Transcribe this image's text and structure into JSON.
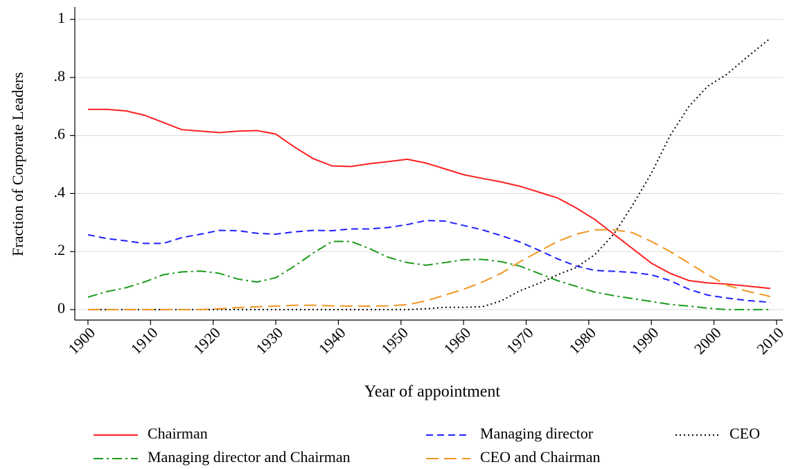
{
  "chart_data": {
    "type": "line",
    "x_label": "Year of appointment",
    "y_label": "Fraction of Corporate Leaders",
    "x": [
      1900,
      1903,
      1906,
      1909,
      1912,
      1915,
      1918,
      1921,
      1924,
      1927,
      1930,
      1933,
      1936,
      1939,
      1942,
      1945,
      1948,
      1951,
      1954,
      1957,
      1960,
      1963,
      1966,
      1969,
      1972,
      1975,
      1978,
      1981,
      1984,
      1987,
      1990,
      1993,
      1996,
      1999,
      2002,
      2005,
      2009
    ],
    "series": [
      {
        "name": "Chairman",
        "color": "#ff2020",
        "line_style": "solid",
        "values": [
          0.69,
          0.69,
          0.685,
          0.67,
          0.645,
          0.62,
          0.615,
          0.61,
          0.615,
          0.617,
          0.605,
          0.56,
          0.52,
          0.495,
          0.493,
          0.503,
          0.51,
          0.518,
          0.505,
          0.485,
          0.465,
          0.452,
          0.44,
          0.425,
          0.405,
          0.385,
          0.35,
          0.31,
          0.26,
          0.21,
          0.16,
          0.125,
          0.1,
          0.092,
          0.088,
          0.082,
          0.073
        ]
      },
      {
        "name": "Managing director",
        "color": "#1f1fff",
        "line_style": "dashed",
        "values": [
          0.258,
          0.245,
          0.237,
          0.228,
          0.228,
          0.248,
          0.26,
          0.273,
          0.272,
          0.263,
          0.26,
          0.268,
          0.273,
          0.272,
          0.278,
          0.278,
          0.283,
          0.293,
          0.307,
          0.305,
          0.29,
          0.275,
          0.255,
          0.233,
          0.205,
          0.175,
          0.15,
          0.135,
          0.132,
          0.128,
          0.12,
          0.1,
          0.07,
          0.05,
          0.04,
          0.032,
          0.025
        ]
      },
      {
        "name": "CEO",
        "color": "#000000",
        "line_style": "dotted",
        "values": [
          0,
          0,
          0,
          0,
          0,
          0,
          0,
          0,
          0,
          0,
          0,
          0,
          0,
          0,
          0,
          0,
          0,
          0,
          0.003,
          0.008,
          0.008,
          0.01,
          0.03,
          0.065,
          0.09,
          0.12,
          0.145,
          0.19,
          0.26,
          0.36,
          0.47,
          0.6,
          0.7,
          0.77,
          0.81,
          0.865,
          0.935
        ]
      },
      {
        "name": "Managing director and Chairman",
        "color": "#1a9a1a",
        "line_style": "dashdot",
        "values": [
          0.043,
          0.062,
          0.075,
          0.095,
          0.12,
          0.13,
          0.133,
          0.125,
          0.105,
          0.095,
          0.11,
          0.15,
          0.195,
          0.235,
          0.235,
          0.21,
          0.18,
          0.162,
          0.153,
          0.162,
          0.172,
          0.173,
          0.165,
          0.15,
          0.125,
          0.1,
          0.08,
          0.06,
          0.048,
          0.038,
          0.028,
          0.018,
          0.012,
          0.005,
          0,
          0,
          0
        ]
      },
      {
        "name": "CEO and Chairman",
        "color": "#f0961e",
        "line_style": "longdash",
        "values": [
          0,
          0,
          0,
          0,
          0,
          0,
          0,
          0.003,
          0.007,
          0.01,
          0.012,
          0.015,
          0.015,
          0.013,
          0.012,
          0.012,
          0.013,
          0.017,
          0.03,
          0.05,
          0.07,
          0.095,
          0.125,
          0.165,
          0.2,
          0.235,
          0.26,
          0.275,
          0.275,
          0.265,
          0.235,
          0.2,
          0.16,
          0.12,
          0.085,
          0.065,
          0.045
        ]
      }
    ],
    "xlim": [
      1897.9,
      2011
    ],
    "xticks": [
      1900,
      1910,
      1920,
      1930,
      1940,
      1950,
      1960,
      1970,
      1980,
      1990,
      2000,
      2010
    ],
    "ylim": [
      -0.036,
      1.043
    ],
    "yticks": [
      0,
      {
        "value": 0.2,
        "label": ".2"
      },
      {
        "value": 0.4,
        "label": ".4"
      },
      {
        "value": 0.6,
        "label": ".6"
      },
      {
        "value": 0.8,
        "label": ".8"
      },
      1
    ],
    "grid": true,
    "legend_position": "bottom"
  }
}
